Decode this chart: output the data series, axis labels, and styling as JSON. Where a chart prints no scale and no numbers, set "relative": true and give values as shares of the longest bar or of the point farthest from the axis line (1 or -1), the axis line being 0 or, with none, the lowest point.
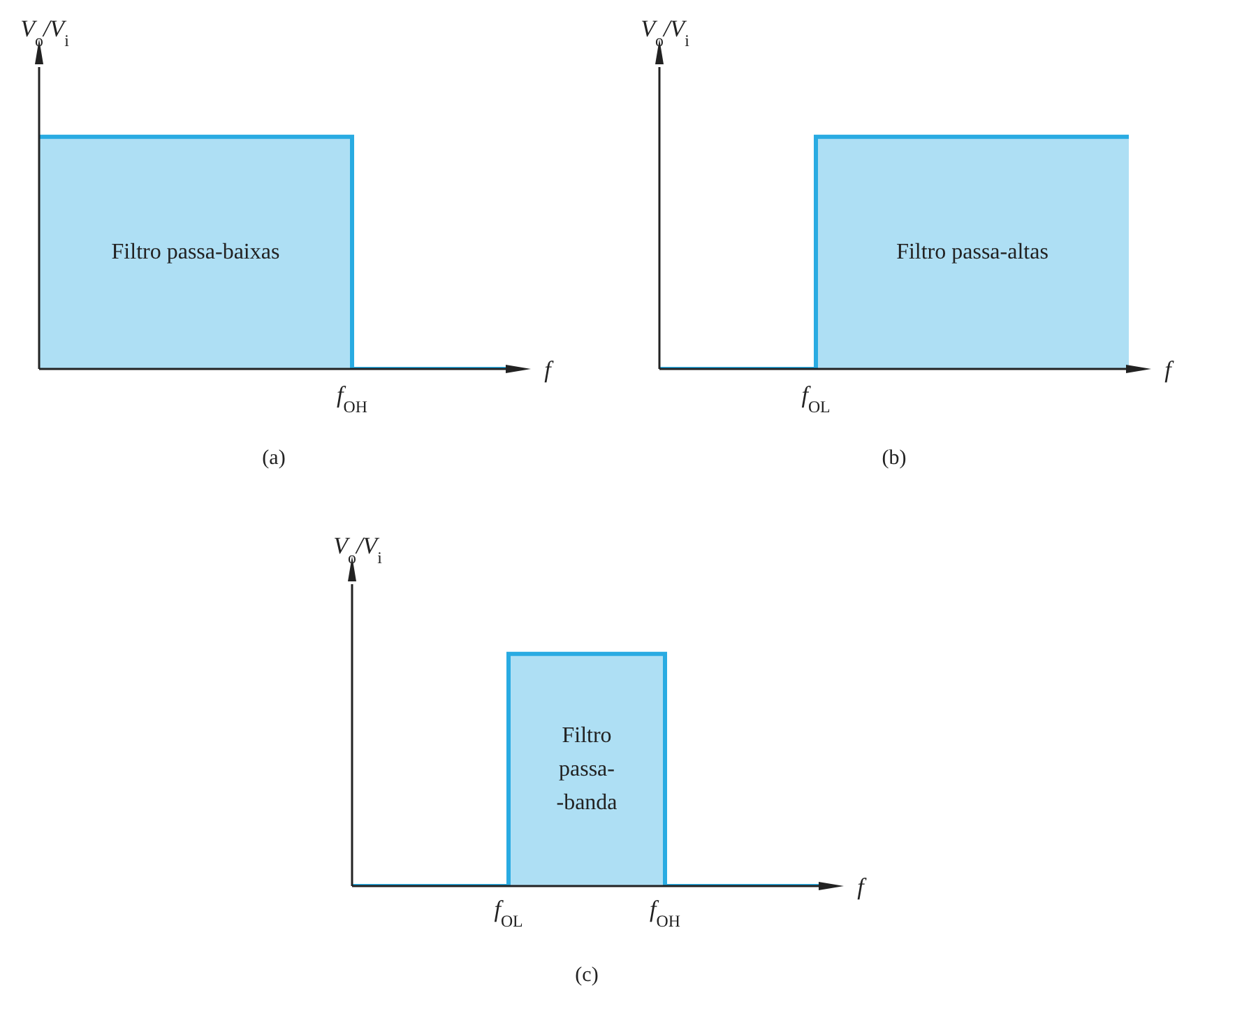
{
  "chart_data": [
    {
      "type": "step",
      "relative": true,
      "title": "(a)",
      "xlabel": "f",
      "ylabel": "V$_{o}$/V$_{i}$",
      "categories": [
        null,
        null,
        null,
        null
      ],
      "values": [
        1,
        1,
        0,
        0
      ],
      "color": "#29abe2",
      "annotations": [
        "Filtro passa-baixas",
        {
          "text": "f$_{OH}$",
          "y": 0
        }
      ]
    },
    {
      "type": "step",
      "relative": true,
      "title": "(b)",
      "xlabel": "f",
      "ylabel": "V$_{o}$/V$_{i}$",
      "categories": [
        null,
        null,
        null,
        null
      ],
      "values": [
        0,
        1,
        1,
        1
      ],
      "color": "#29abe2",
      "annotations": [
        "Filtro passa-altas",
        {
          "text": "f$_{OL}$",
          "y": 0
        }
      ]
    },
    {
      "type": "step",
      "relative": true,
      "title": "(c)",
      "xlabel": "f",
      "ylabel": "V$_{o}$/V$_{i}$",
      "categories": [
        null,
        "f$_{OL}$",
        "f$_{OH}$",
        null
      ],
      "values": [
        0,
        1,
        0,
        0
      ],
      "color": "#29abe2",
      "annotations": [
        "Filtro passa- -banda"
      ]
    }
  ]
}
